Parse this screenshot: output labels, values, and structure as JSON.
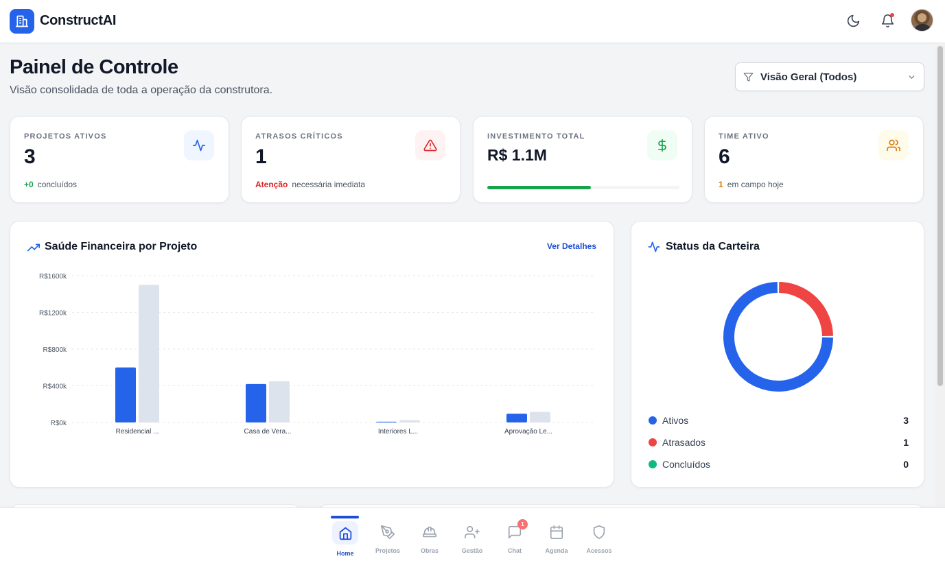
{
  "header": {
    "brand": "ConstructAI",
    "icons": [
      "building-icon",
      "moon-icon",
      "bell-icon",
      "avatar"
    ]
  },
  "page": {
    "title": "Painel de Controle",
    "subtitle": "Visão consolidada de toda a operação da construtora.",
    "filter_label": "Visão Geral (Todos)"
  },
  "kpis": [
    {
      "label": "PROJETOS ATIVOS",
      "value": "3",
      "foot_accent": "+0",
      "foot_text": "concluídos",
      "accent_color": "#16a34a",
      "icon": "activity-icon"
    },
    {
      "label": "ATRASOS CRÍTICOS",
      "value": "1",
      "foot_accent": "Atenção",
      "foot_text": "necessária imediata",
      "accent_color": "#dc2626",
      "icon": "alert-triangle-icon"
    },
    {
      "label": "INVESTIMENTO TOTAL",
      "value": "R$ 1.1M",
      "progress": 0.54,
      "icon": "dollar-icon"
    },
    {
      "label": "TIME ATIVO",
      "value": "6",
      "foot_accent": "1",
      "foot_text": "em campo hoje",
      "accent_color": "#d97706",
      "icon": "users-icon"
    }
  ],
  "finance_card": {
    "title": "Saúde Financeira por Projeto",
    "link": "Ver Detalhes"
  },
  "status_card": {
    "title": "Status da Carteira",
    "legend": [
      {
        "name": "Ativos",
        "value": "3",
        "color": "#2563eb"
      },
      {
        "name": "Atrasados",
        "value": "1",
        "color": "#ef4444"
      },
      {
        "name": "Concluídos",
        "value": "0",
        "color": "#10b981"
      }
    ]
  },
  "chart_data": [
    {
      "type": "bar",
      "title": "Saúde Financeira por Projeto",
      "categories": [
        "Residencial ...",
        "Casa de Vera...",
        "Interiores L...",
        "Aprovação Le..."
      ],
      "series": [
        {
          "values": [
            600,
            420,
            8,
            95
          ],
          "color": "#2563eb"
        },
        {
          "values": [
            1500,
            450,
            25,
            115
          ],
          "color": "#dde3ec"
        }
      ],
      "y_ticks": [
        "R$0k",
        "R$400k",
        "R$800k",
        "R$1200k",
        "R$1600k"
      ],
      "ylim": [
        0,
        1600
      ],
      "grid": true
    },
    {
      "type": "pie",
      "title": "Status da Carteira",
      "categories": [
        "Ativos",
        "Atrasados",
        "Concluídos"
      ],
      "values": [
        3,
        1,
        0
      ],
      "colors": [
        "#2563eb",
        "#ef4444",
        "#10b981"
      ]
    }
  ],
  "nav": {
    "items": [
      {
        "label": "Home",
        "icon": "home-icon",
        "active": true
      },
      {
        "label": "Projetos",
        "icon": "pen-tool-icon"
      },
      {
        "label": "Obras",
        "icon": "hard-hat-icon"
      },
      {
        "label": "Gestão",
        "icon": "user-plus-icon"
      },
      {
        "label": "Chat",
        "icon": "chat-icon",
        "badge": "1"
      },
      {
        "label": "Agenda",
        "icon": "calendar-icon"
      },
      {
        "label": "Acessos",
        "icon": "shield-icon"
      }
    ]
  }
}
